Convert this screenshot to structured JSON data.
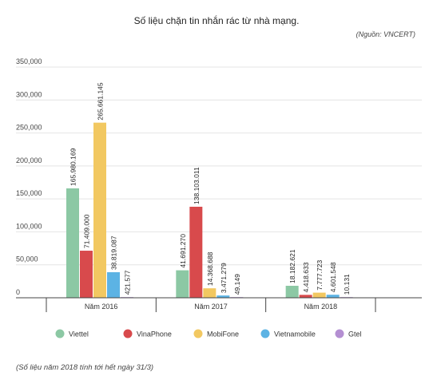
{
  "header": {
    "title": "Số liệu chặn tin nhắn rác từ nhà mạng.",
    "source": "(Nguồn: VNCERT)"
  },
  "footnote": "(Số liệu năm 2018 tính tới hết ngày 31/3)",
  "chart_data": {
    "type": "bar",
    "title": "Số liệu chặn tin nhắn rác từ nhà mạng.",
    "categories": [
      "Năm 2016",
      "Năm 2017",
      "Năm 2018"
    ],
    "yticks": [
      "0",
      "50,000",
      "100,000",
      "150,000",
      "200,000",
      "250,000",
      "300,000",
      "350,000"
    ],
    "ylim": [
      0,
      350000
    ],
    "grid": true,
    "legend_position": "bottom",
    "series": [
      {
        "name": "Viettel",
        "color": "#8cc8a4",
        "values": [
          165980.169,
          41691.27,
          18182.621
        ],
        "labels": [
          "165.980.169",
          "41.691.270",
          "18.182.621"
        ]
      },
      {
        "name": "VinaPhone",
        "color": "#d84a4c",
        "values": [
          71409.0,
          138103.011,
          4418.633
        ],
        "labels": [
          "71.409.000",
          "138.103.011",
          "4.418.633"
        ]
      },
      {
        "name": "MobiFone",
        "color": "#f2c861",
        "values": [
          265661.145,
          14368.688,
          7777.723
        ],
        "labels": [
          "265.661.145",
          "14.368.688",
          "7.777.723"
        ]
      },
      {
        "name": "Vietnamobile",
        "color": "#5cb3e4",
        "values": [
          38819.087,
          3471.279,
          4601.548
        ],
        "labels": [
          "38.819.087",
          "3.471.279",
          "4.601.548"
        ]
      },
      {
        "name": "Gtel",
        "color": "#b48fd2",
        "values": [
          421.577,
          49.149,
          10.131
        ],
        "labels": [
          "421.577",
          "49.149",
          "10.131"
        ]
      }
    ]
  }
}
